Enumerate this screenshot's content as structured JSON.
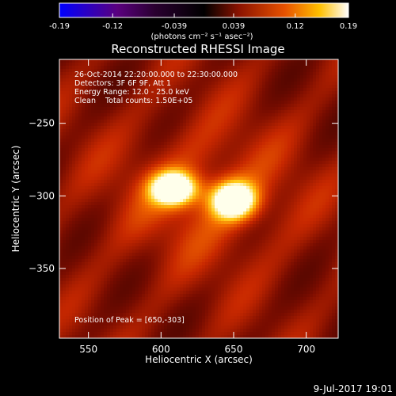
{
  "colors": {
    "background": "#000000",
    "text": "#ffffff",
    "axes": "#ffffff",
    "colormap": [
      "#0000ff",
      "#5a007f",
      "#000000",
      "#7a0f00",
      "#e05000",
      "#ffc000",
      "#ffffff"
    ]
  },
  "colorbar": {
    "range": [
      -0.19,
      0.19
    ],
    "tick_labels": [
      "-0.19",
      "-0.12",
      "-0.039",
      "0.039",
      "0.12",
      "0.19"
    ],
    "units_label": "(photons cm⁻² s⁻¹ asec⁻²)"
  },
  "timestamp": "9-Jul-2017 19:01",
  "chart_data": {
    "type": "heatmap",
    "title": "Reconstructed RHESSI Image",
    "xlabel": "Heliocentric X (arcsec)",
    "ylabel": "Heliocentric Y (arcsec)",
    "xlim": [
      530,
      722
    ],
    "ylim": [
      -398,
      -206
    ],
    "x_ticks": [
      550,
      600,
      650,
      700
    ],
    "x_tick_labels": [
      "550",
      "600",
      "650",
      "700"
    ],
    "y_ticks": [
      -250,
      -300,
      -350
    ],
    "y_tick_labels": [
      "−250",
      "−300",
      "−350"
    ],
    "info_lines": [
      "26-Oct-2014 22:20:00.000 to 22:30:00.000",
      "Detectors: 3F 6F 9F, Att 1",
      "Energy Range: 12.0 - 25.0 keV",
      "Clean    Total counts: 1.50E+05"
    ],
    "peak_label": "Position of Peak = [650,-303]",
    "sources": [
      {
        "x": 609,
        "y": -295,
        "sigma_x": 11,
        "sigma_y": 8,
        "peak": 0.19
      },
      {
        "x": 650,
        "y": -303,
        "sigma_x": 11,
        "sigma_y": 9,
        "peak": 0.19
      }
    ],
    "background_level": 0.055
  }
}
